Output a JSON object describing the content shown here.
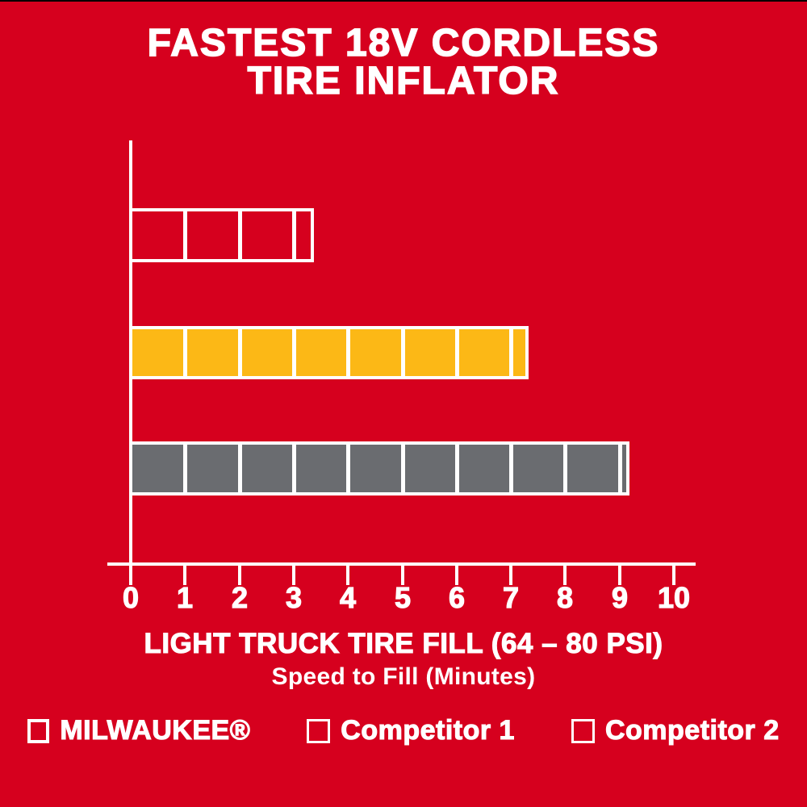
{
  "title": {
    "line1": "FASTEST 18V CORDLESS",
    "line2": "TIRE INFLATOR"
  },
  "colors": {
    "background_red": "#D6001E",
    "milwaukee_bar": "transparent (red show-through, white outline)",
    "competitor1_yellow": "#FCB816",
    "competitor2_gray": "#6A6C70",
    "axis_and_text": "#FFFFFF"
  },
  "chart_data": {
    "type": "bar",
    "orientation": "horizontal",
    "title": "FASTEST 18V CORDLESS TIRE INFLATOR",
    "xlabel": "LIGHT TRUCK TIRE FILL (64 – 80 PSI)",
    "xlabel_secondary": "Speed to Fill (Minutes)",
    "xlim": [
      0,
      10.4
    ],
    "x_ticks": [
      0,
      1,
      2,
      3,
      4,
      5,
      6,
      7,
      8,
      9,
      10
    ],
    "grid": false,
    "segmented_bars": true,
    "legend_position": "bottom",
    "series": [
      {
        "name": "MILWAUKEE®",
        "value": 3.35,
        "fill": "transparent",
        "outline": "#FFFFFF"
      },
      {
        "name": "Competitor 1",
        "value": 7.3,
        "fill": "#FCB816",
        "outline": "#FFFFFF"
      },
      {
        "name": "Competitor 2",
        "value": 9.15,
        "fill": "#6A6C70",
        "outline": "#FFFFFF"
      }
    ]
  },
  "legend": {
    "items": [
      {
        "label": "MILWAUKEE®",
        "swatch": "outlined-red"
      },
      {
        "label": "Competitor 1",
        "swatch": "yellow"
      },
      {
        "label": "Competitor 2",
        "swatch": "gray"
      }
    ]
  }
}
